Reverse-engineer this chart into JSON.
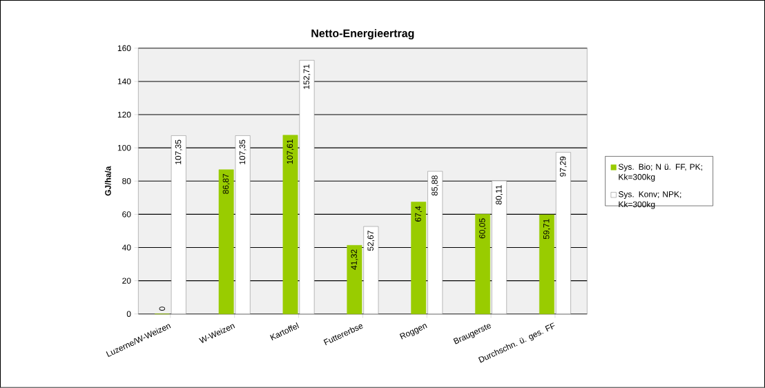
{
  "chart_data": {
    "type": "bar",
    "title": "Netto-Energieertrag",
    "ylabel": "GJ/ha/a",
    "categories": [
      "Luzerne/W-Weizen",
      "W-Weizen",
      "Kartoffel",
      "Futtererbse",
      "Roggen",
      "Braugerste",
      "Durchschn. ü. ges. FF"
    ],
    "series": [
      {
        "name": "Sys. Bio; N ü. FF, PK; Kk=300kg",
        "color": "#99cc00",
        "values": [
          0,
          86.87,
          107.61,
          41.32,
          67.4,
          60.05,
          59.71
        ],
        "value_labels": [
          "0",
          "86,87",
          "107,61",
          "41,32",
          "67,4",
          "60,05",
          "59,71"
        ]
      },
      {
        "name": "Sys. Konv; NPK; Kk=300kg",
        "color": "#ffffff",
        "values": [
          107.35,
          107.35,
          152.71,
          52.67,
          85.88,
          80.11,
          97.29
        ],
        "value_labels": [
          "107,35",
          "107,35",
          "152,71",
          "52,67",
          "85,88",
          "80,11",
          "97,29"
        ]
      }
    ],
    "ylim": [
      0,
      160
    ],
    "yticks": [
      0,
      20,
      40,
      60,
      80,
      100,
      120,
      140,
      160
    ],
    "grid": "y",
    "legend": "right"
  }
}
